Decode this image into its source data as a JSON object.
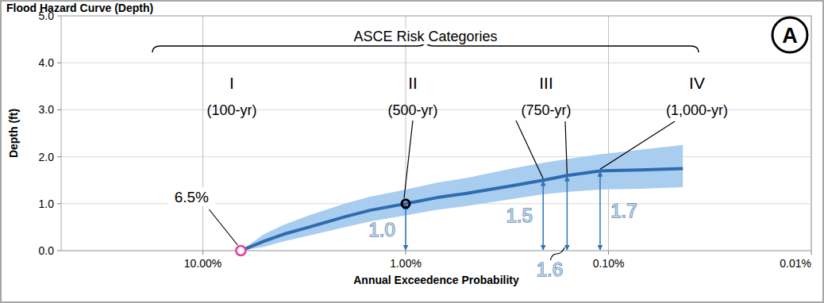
{
  "chart_data": {
    "type": "line",
    "title": "Flood Hazard Curve (Depth)",
    "x_label": "Annual Exceedence Probability",
    "y_label": "Depth (ft)",
    "badge": "A",
    "log": "x",
    "grid": true,
    "color": "#2e6bb0",
    "band_color": "#a9cdef",
    "xlim": [
      50,
      0.01
    ],
    "xticks": [
      {
        "value": 10,
        "label": "10.00%"
      },
      {
        "value": 1,
        "label": "1.00%"
      },
      {
        "value": 0.1,
        "label": "0.10%"
      },
      {
        "value": 0.01,
        "label": "0.01%"
      }
    ],
    "ylim": [
      0,
      5
    ],
    "yticks": [
      {
        "value": 0,
        "label": "0.0"
      },
      {
        "value": 1,
        "label": "1.0"
      },
      {
        "value": 2,
        "label": "2.0"
      },
      {
        "value": 3,
        "label": "3.0"
      },
      {
        "value": 4,
        "label": "4.0"
      },
      {
        "value": 5,
        "label": "5.0"
      }
    ],
    "x": [
      6.5,
      5,
      4,
      3,
      2,
      1.5,
      1,
      0.7,
      0.5,
      0.3,
      0.21,
      0.16,
      0.11,
      0.07,
      0.043
    ],
    "values": [
      0,
      0.2,
      0.35,
      0.5,
      0.72,
      0.86,
      1.0,
      1.13,
      1.22,
      1.38,
      1.5,
      1.6,
      1.7,
      1.72,
      1.75
    ],
    "band_lower": [
      0,
      0.08,
      0.2,
      0.32,
      0.5,
      0.62,
      0.75,
      0.87,
      0.95,
      1.1,
      1.2,
      1.25,
      1.3,
      1.32,
      1.35
    ],
    "band_upper": [
      0,
      0.35,
      0.55,
      0.75,
      1.0,
      1.15,
      1.3,
      1.45,
      1.55,
      1.75,
      1.87,
      1.95,
      2.05,
      2.15,
      2.25
    ],
    "risk_categories": {
      "title": "ASCE Risk Categories",
      "items": [
        {
          "label": "I",
          "period": "(100-yr)"
        },
        {
          "label": "II",
          "period": "(500-yr)"
        },
        {
          "label": "III",
          "period": "(750-yr)"
        },
        {
          "label": "IV",
          "period": "(1,000-yr)"
        }
      ]
    },
    "annotations": [
      {
        "x": 6.5,
        "y": 0,
        "label": "6.5%"
      },
      {
        "x": 1,
        "y": 1.0,
        "label": "1.0"
      },
      {
        "x": 0.21,
        "y": 1.5,
        "label": "1.5"
      },
      {
        "x": 0.16,
        "y": 1.6,
        "label": "1.6"
      },
      {
        "x": 0.11,
        "y": 1.7,
        "label": "1.7"
      }
    ]
  }
}
